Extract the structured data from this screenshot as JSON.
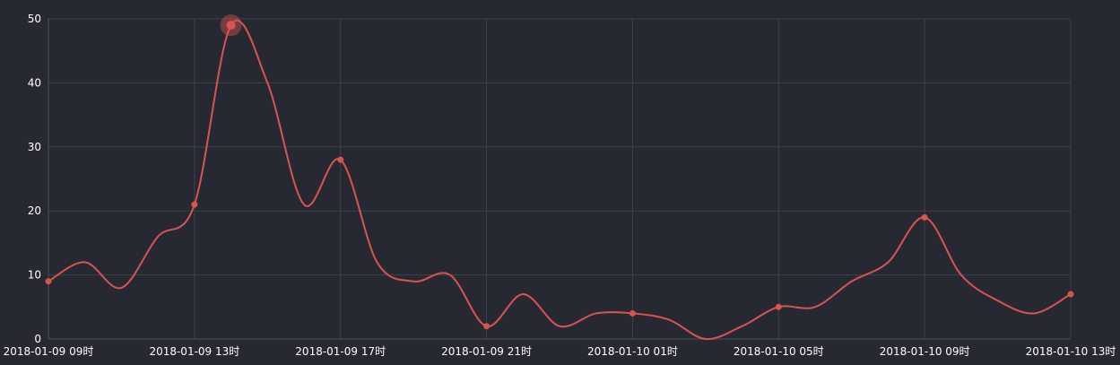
{
  "chart_data": {
    "type": "line",
    "title": "",
    "xlabel": "",
    "ylabel": "",
    "x": [
      "2018-01-09 09时",
      "2018-01-09 10时",
      "2018-01-09 11时",
      "2018-01-09 12时",
      "2018-01-09 13时",
      "2018-01-09 14时",
      "2018-01-09 15时",
      "2018-01-09 16时",
      "2018-01-09 17时",
      "2018-01-09 18时",
      "2018-01-09 19时",
      "2018-01-09 20时",
      "2018-01-09 21时",
      "2018-01-09 22时",
      "2018-01-09 23时",
      "2018-01-10 00时",
      "2018-01-10 01时",
      "2018-01-10 02时",
      "2018-01-10 03时",
      "2018-01-10 04时",
      "2018-01-10 05时",
      "2018-01-10 06时",
      "2018-01-10 07时",
      "2018-01-10 08时",
      "2018-01-10 09时",
      "2018-01-10 10时",
      "2018-01-10 11时",
      "2018-01-10 12时",
      "2018-01-10 13时"
    ],
    "x_tick_labels": [
      "2018-01-09 09时",
      "2018-01-09 13时",
      "2018-01-09 17时",
      "2018-01-09 21时",
      "2018-01-10 01时",
      "2018-01-10 05时",
      "2018-01-10 09时",
      "2018-01-10 13时"
    ],
    "y_tick_labels": [
      "0",
      "10",
      "20",
      "30",
      "40",
      "50"
    ],
    "ylim": [
      0,
      50
    ],
    "grid": true,
    "highlight_index": 5,
    "series": [
      {
        "name": "",
        "color": "#d9534f",
        "values": [
          9,
          12,
          8,
          16,
          21,
          49,
          40,
          21,
          28,
          12,
          9,
          10,
          2,
          7,
          2,
          4,
          4,
          3,
          0,
          2,
          5,
          5,
          9,
          12,
          19,
          10,
          6,
          4,
          7
        ],
        "marked_indices": [
          0,
          4,
          5,
          8,
          12,
          16,
          20,
          24,
          28
        ]
      }
    ]
  }
}
